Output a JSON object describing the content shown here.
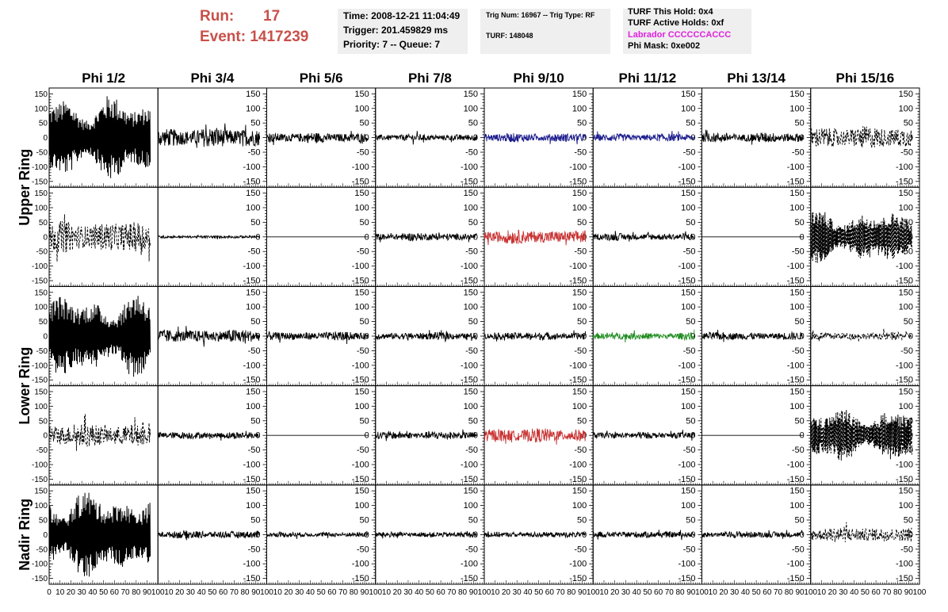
{
  "header": {
    "run_label": "Run:",
    "run_value": "17",
    "event_label": "Event:",
    "event_value": "1417239",
    "time": "Time: 2008-12-21 11:04:49",
    "trigger": "Trigger: 201.459829 ms",
    "priority": "Priority: 7 -- Queue: 7",
    "trig_num": "Trig Num: 16967 -- Trig Type: RF",
    "turf": "TURF: 148048",
    "turf_this_hold": "TURF This Hold: 0x4",
    "turf_active_holds": "TURF Active Holds: 0xf",
    "labrador": "Labrador CCCCCCACCC",
    "phi_mask": "Phi Mask: 0xe002"
  },
  "colors": {
    "header_red": "#c8504a",
    "labrador_magenta": "#e020e0",
    "box_bg": "#efefef",
    "trace_black": "#000000",
    "trace_blue": "#1c1c8c",
    "trace_red": "#c83232",
    "trace_green": "#208c20"
  },
  "chart_data": {
    "type": "line",
    "columns": [
      "Phi 1/2",
      "Phi 3/4",
      "Phi 5/6",
      "Phi 7/8",
      "Phi 9/10",
      "Phi 11/12",
      "Phi 13/14",
      "Phi 15/16"
    ],
    "row_groups": [
      {
        "label": "Upper Ring",
        "rows": [
          0,
          1
        ]
      },
      {
        "label": "Lower Ring",
        "rows": [
          2,
          3
        ]
      },
      {
        "label": "Nadir Ring",
        "rows": [
          4
        ]
      }
    ],
    "x_range": [
      0,
      100
    ],
    "x_ticks": [
      0,
      10,
      20,
      30,
      40,
      50,
      60,
      70,
      80,
      90,
      100
    ],
    "y_range": [
      -170,
      170
    ],
    "y_ticks": [
      -150,
      -100,
      -50,
      0,
      50,
      100,
      150
    ],
    "grid": false,
    "trace_x_extent": [
      0,
      93
    ],
    "samples_per_trace": 256,
    "panels": [
      [
        {
          "amplitude": 110,
          "style": "solid",
          "color": "black"
        },
        {
          "amplitude": 35,
          "style": "solid",
          "color": "black"
        },
        {
          "amplitude": 18,
          "style": "solid",
          "color": "black"
        },
        {
          "amplitude": 12,
          "style": "solid",
          "color": "black"
        },
        {
          "amplitude": 16,
          "style": "solid",
          "color": "blue"
        },
        {
          "amplitude": 14,
          "style": "solid",
          "color": "blue"
        },
        {
          "amplitude": 18,
          "style": "solid",
          "color": "black"
        },
        {
          "amplitude": 40,
          "style": "dashed",
          "color": "black"
        }
      ],
      [
        {
          "amplitude": 55,
          "style": "dashed",
          "color": "black"
        },
        {
          "amplitude": 5,
          "style": "solid",
          "color": "black"
        },
        {
          "amplitude": 0,
          "style": "solid",
          "color": "black"
        },
        {
          "amplitude": 14,
          "style": "solid",
          "color": "black"
        },
        {
          "amplitude": 25,
          "style": "solid",
          "color": "red"
        },
        {
          "amplitude": 13,
          "style": "solid",
          "color": "black"
        },
        {
          "amplitude": 0,
          "style": "solid",
          "color": "black"
        },
        {
          "amplitude": 70,
          "style": "dashed",
          "color": "black"
        }
      ],
      [
        {
          "amplitude": 110,
          "style": "solid",
          "color": "black"
        },
        {
          "amplitude": 24,
          "style": "solid",
          "color": "black"
        },
        {
          "amplitude": 16,
          "style": "solid",
          "color": "black"
        },
        {
          "amplitude": 14,
          "style": "solid",
          "color": "black"
        },
        {
          "amplitude": 14,
          "style": "solid",
          "color": "black"
        },
        {
          "amplitude": 13,
          "style": "solid",
          "color": "green"
        },
        {
          "amplitude": 14,
          "style": "solid",
          "color": "black"
        },
        {
          "amplitude": 14,
          "style": "dashed",
          "color": "black"
        }
      ],
      [
        {
          "amplitude": 40,
          "style": "dashed",
          "color": "black"
        },
        {
          "amplitude": 13,
          "style": "solid",
          "color": "black"
        },
        {
          "amplitude": 0,
          "style": "solid",
          "color": "black"
        },
        {
          "amplitude": 15,
          "style": "solid",
          "color": "black"
        },
        {
          "amplitude": 25,
          "style": "solid",
          "color": "red"
        },
        {
          "amplitude": 12,
          "style": "solid",
          "color": "black"
        },
        {
          "amplitude": 0,
          "style": "solid",
          "color": "black"
        },
        {
          "amplitude": 70,
          "style": "dashed",
          "color": "black"
        }
      ],
      [
        {
          "amplitude": 115,
          "style": "solid",
          "color": "black"
        },
        {
          "amplitude": 14,
          "style": "solid",
          "color": "black"
        },
        {
          "amplitude": 9,
          "style": "solid",
          "color": "black"
        },
        {
          "amplitude": 10,
          "style": "solid",
          "color": "black"
        },
        {
          "amplitude": 10,
          "style": "solid",
          "color": "black"
        },
        {
          "amplitude": 12,
          "style": "solid",
          "color": "black"
        },
        {
          "amplitude": 12,
          "style": "solid",
          "color": "black"
        },
        {
          "amplitude": 28,
          "style": "dashed",
          "color": "black"
        }
      ]
    ]
  }
}
